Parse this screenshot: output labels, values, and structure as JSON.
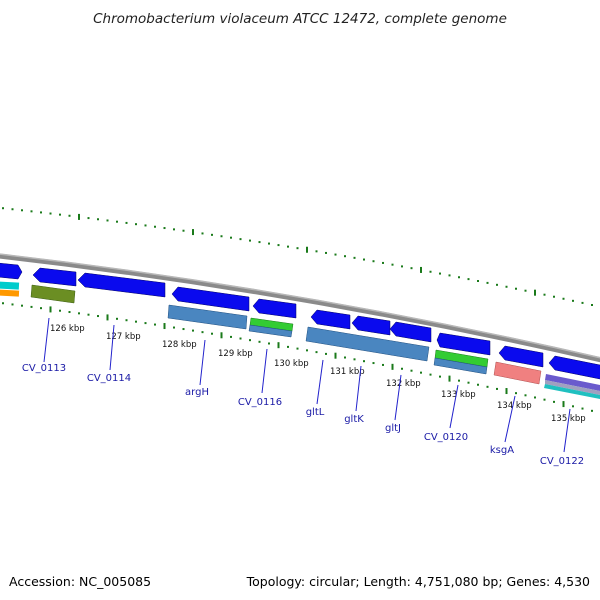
{
  "title": "Chromobacterium violaceum ATCC 12472, complete genome",
  "footer": {
    "accession": "Accession: NC_005085",
    "topology": "Topology: circular; Length: 4,751,080 bp; Genes: 4,530"
  },
  "colors": {
    "forward_cds": "#0a0aee",
    "reverse_blue": "#4a86c0",
    "olive": "#6b8e23",
    "green": "#33cc33",
    "salmon": "#f08080",
    "backbone": "#909090",
    "ticks": "#1a7a1a",
    "label_line": "#2222cc"
  },
  "scale_labels": [
    "126 kbp",
    "127 kbp",
    "128 kbp",
    "129 kbp",
    "130 kbp",
    "131 kbp",
    "132 kbp",
    "133 kbp",
    "134 kbp",
    "135 kbp"
  ],
  "gene_labels": [
    "CV_0113",
    "CV_0114",
    "argH",
    "CV_0116",
    "gltL",
    "gltK",
    "gltJ",
    "CV_0120",
    "ksgA",
    "CV_0122"
  ]
}
